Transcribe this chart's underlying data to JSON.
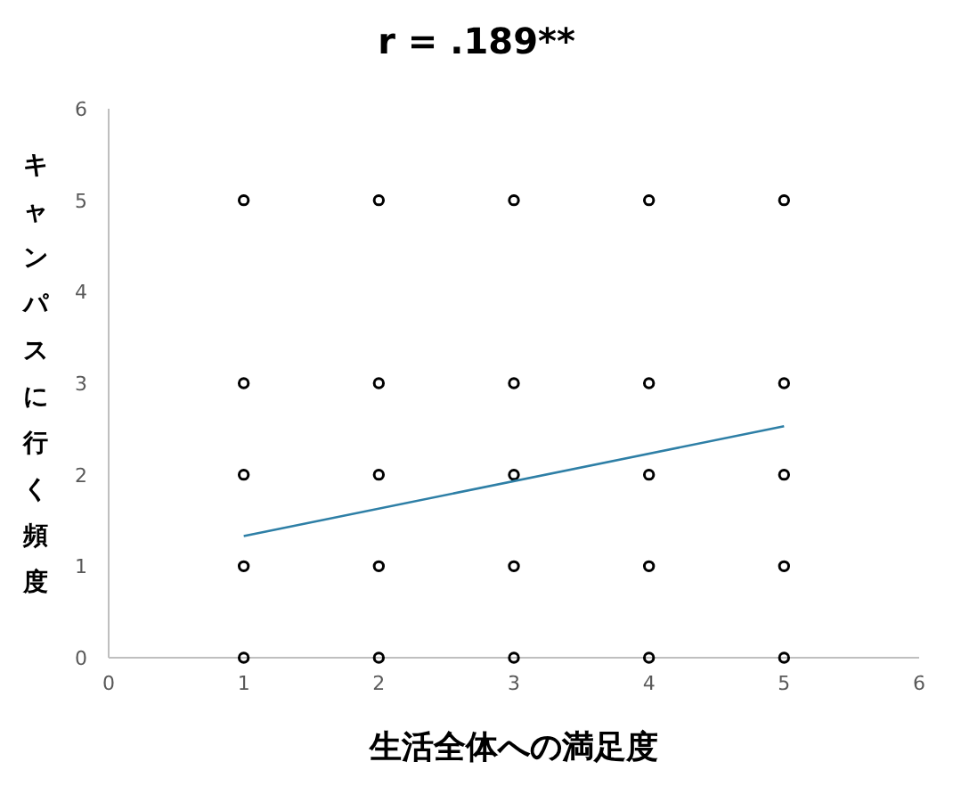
{
  "chart_data": {
    "type": "scatter",
    "title": "r = .189**",
    "xlabel": "生活全体への満足度",
    "ylabel": "キャンパスに行く頻度",
    "xlim": [
      0,
      6
    ],
    "xticks": [
      0,
      1,
      2,
      3,
      4,
      5,
      6
    ],
    "ylim": [
      0,
      6
    ],
    "yticks": [
      0,
      1,
      2,
      3,
      4,
      5,
      6
    ],
    "grid": false,
    "series": [
      {
        "marker": "circle",
        "color": "#000000",
        "x": [
          1,
          1,
          1,
          1,
          1,
          2,
          2,
          2,
          2,
          2,
          3,
          3,
          3,
          3,
          3,
          4,
          4,
          4,
          4,
          4,
          5,
          5,
          5,
          5,
          5
        ],
        "values": [
          0,
          1,
          2,
          3,
          5,
          0,
          1,
          2,
          3,
          5,
          0,
          1,
          2,
          3,
          5,
          0,
          1,
          2,
          3,
          5,
          0,
          1,
          2,
          3,
          5
        ]
      },
      {
        "type": "line",
        "color": "#2e7fa6",
        "line_style": "solid",
        "x": [
          1,
          5
        ],
        "values": [
          1.33,
          2.53
        ]
      }
    ]
  }
}
